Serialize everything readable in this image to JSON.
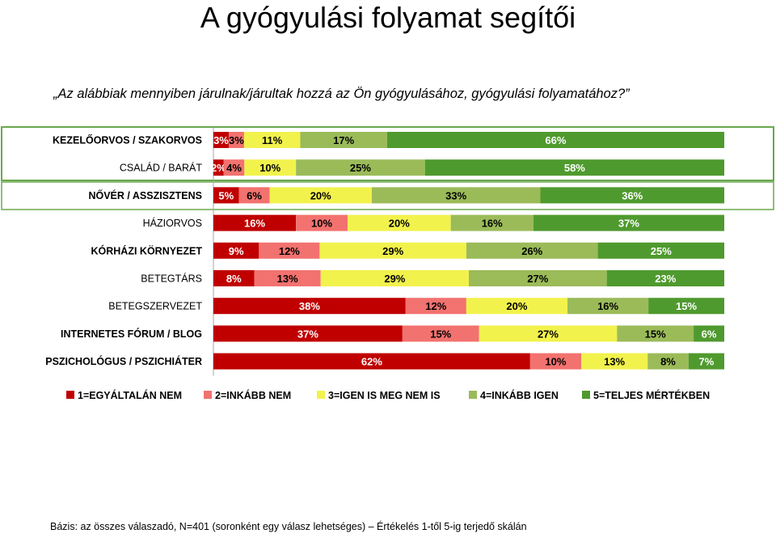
{
  "title": "A gyógyulási folyamat segítői",
  "question": "„Az alábbiak mennyiben járulnak/járultak hozzá az Ön gyógyulásához, gyógyulási folyamatához?”",
  "basis": "Bázis: az összes válaszadó, N=401 (soronként egy válasz lehetséges) – Értékelés 1-től 5-ig terjedő skálán",
  "colors": {
    "s1": "#c00000",
    "s2": "#f2726f",
    "s3": "#f2f24d",
    "s4": "#9bbb59",
    "s5": "#4f9a2e",
    "highlight_box": "#6aa84f"
  },
  "chart_data": {
    "type": "bar",
    "orientation": "horizontal",
    "stacked": true,
    "percent": true,
    "xlim": [
      0,
      100
    ],
    "legend_position": "bottom",
    "categories": [
      "KEZELŐORVOS / SZAKORVOS",
      "CSALÁD / BARÁT",
      "NŐVÉR / ASSZISZTENS",
      "HÁZIORVOS",
      "KÓRHÁZI KÖRNYEZET",
      "BETEGTÁRS",
      "BETEGSZERVEZET",
      "INTERNETES FÓRUM / BLOG",
      "PSZICHOLÓGUS / PSZICHIÁTER"
    ],
    "bold_categories": [
      true,
      false,
      true,
      false,
      true,
      false,
      false,
      true,
      true
    ],
    "highlighted_rows": [
      0,
      1,
      2
    ],
    "series": [
      {
        "name": "1=EGYÁLTALÁN NEM",
        "color": "#c00000",
        "values": [
          3,
          2,
          5,
          16,
          9,
          8,
          38,
          37,
          62
        ]
      },
      {
        "name": "2=INKÁBB NEM",
        "color": "#f2726f",
        "values": [
          3,
          4,
          6,
          10,
          12,
          13,
          12,
          15,
          10
        ]
      },
      {
        "name": "3=IGEN IS MEG NEM IS",
        "color": "#f2f24d",
        "values": [
          11,
          10,
          20,
          20,
          29,
          29,
          20,
          27,
          13
        ]
      },
      {
        "name": "4=INKÁBB IGEN",
        "color": "#9bbb59",
        "values": [
          17,
          25,
          33,
          16,
          26,
          27,
          16,
          15,
          8
        ]
      },
      {
        "name": "5=TELJES MÉRTÉKBEN",
        "color": "#4f9a2e",
        "values": [
          66,
          58,
          36,
          37,
          25,
          23,
          15,
          6,
          7
        ]
      }
    ],
    "value_suffix": "%"
  }
}
